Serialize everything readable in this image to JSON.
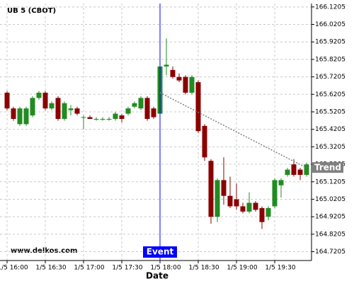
{
  "chart_data": {
    "type": "candlestick",
    "title": "UB 5 (CBOT)",
    "watermark": "www.delkos.com",
    "x_label": "Date",
    "categories": [
      "1/5 16:00",
      null,
      null,
      null,
      null,
      null,
      "1/5 16:30",
      null,
      null,
      null,
      null,
      null,
      "1/5 17:00",
      null,
      null,
      null,
      null,
      null,
      "1/5 17:30",
      null,
      null,
      null,
      null,
      null,
      "1/5 18:00",
      null,
      null,
      null,
      null,
      null,
      "1/5 18:30",
      null,
      null,
      null,
      null,
      null,
      "1/5 19:00",
      null,
      null,
      null,
      null,
      null,
      "1/5 19:30",
      null,
      null,
      null,
      null,
      null
    ],
    "open": [
      165.63,
      165.54,
      165.45,
      165.45,
      165.5,
      165.6,
      165.63,
      165.54,
      165.6,
      165.48,
      165.53,
      165.54,
      165.49,
      165.49,
      165.48,
      165.48,
      165.48,
      165.48,
      165.5,
      165.51,
      165.55,
      165.54,
      165.6,
      165.54,
      165.51,
      165.78,
      165.76,
      165.72,
      165.72,
      165.63,
      165.69,
      165.44,
      165.24,
      164.92,
      165.13,
      165.04,
      165.02,
      164.98,
      164.95,
      165.0,
      164.97,
      164.92,
      164.98,
      165.1,
      165.16,
      165.22,
      165.19,
      165.16
    ],
    "high": [
      165.64,
      165.55,
      165.55,
      165.55,
      165.61,
      165.64,
      165.64,
      165.58,
      165.61,
      165.58,
      165.56,
      165.55,
      165.5,
      165.5,
      165.49,
      165.49,
      165.49,
      165.52,
      165.51,
      165.55,
      165.58,
      165.61,
      165.61,
      165.55,
      165.79,
      165.94,
      165.78,
      165.74,
      165.73,
      165.73,
      165.7,
      165.45,
      165.25,
      165.14,
      165.26,
      165.15,
      165.11,
      165.0,
      165.06,
      165.01,
      164.98,
      164.98,
      165.14,
      165.14,
      165.2,
      165.25,
      165.2,
      165.23
    ],
    "low": [
      165.53,
      165.47,
      165.44,
      165.44,
      165.49,
      165.59,
      165.53,
      165.53,
      165.47,
      165.47,
      165.5,
      165.5,
      165.42,
      165.48,
      165.47,
      165.47,
      165.47,
      165.47,
      165.46,
      165.5,
      165.54,
      165.53,
      165.47,
      165.48,
      165.49,
      165.73,
      165.71,
      165.69,
      165.62,
      165.62,
      165.4,
      165.24,
      164.88,
      164.89,
      164.99,
      164.97,
      164.96,
      164.94,
      164.94,
      164.95,
      164.85,
      164.9,
      164.97,
      165.03,
      165.15,
      165.15,
      165.13,
      165.15
    ],
    "close": [
      165.54,
      165.48,
      165.54,
      165.54,
      165.6,
      165.63,
      165.54,
      165.57,
      165.48,
      165.57,
      165.54,
      165.51,
      165.49,
      165.48,
      165.48,
      165.48,
      165.48,
      165.51,
      165.48,
      165.54,
      165.57,
      165.6,
      165.48,
      165.49,
      165.78,
      165.79,
      165.72,
      165.7,
      165.63,
      165.72,
      165.41,
      165.26,
      164.92,
      165.13,
      165.04,
      164.98,
      164.98,
      164.95,
      165.0,
      164.96,
      164.89,
      164.97,
      165.13,
      165.13,
      165.19,
      165.16,
      165.16,
      165.22
    ],
    "up_color": "#228b22",
    "down_color": "#8b0000",
    "ylim": [
      164.67,
      166.14
    ],
    "yticks": [
      164.7205,
      164.8205,
      164.9205,
      165.0205,
      165.1205,
      165.2205,
      165.3205,
      165.4205,
      165.5205,
      165.6205,
      165.7205,
      165.8205,
      165.9205,
      166.0205,
      166.1205
    ],
    "grid": true,
    "event": {
      "label": "Event",
      "color": "#0000ff"
    },
    "trend": {
      "label": "Trend",
      "values": [
        165.63,
        165.2
      ],
      "color": "#808080"
    }
  }
}
